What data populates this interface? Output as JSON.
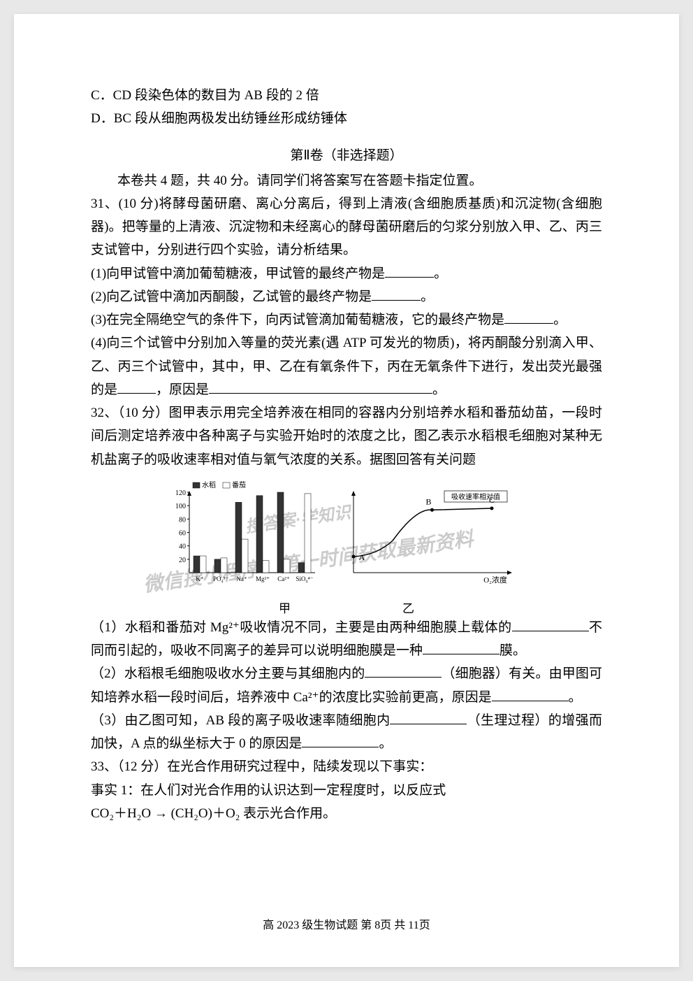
{
  "options": {
    "c": "C．CD 段染色体的数目为 AB 段的 2 倍",
    "d": "D．BC 段从细胞两极发出纺锤丝形成纺锤体"
  },
  "section2": {
    "title": "第Ⅱ卷（非选择题）",
    "intro": "本卷共 4 题，共 40 分。请同学们将答案写在答题卡指定位置。"
  },
  "q31": {
    "stem": "31、(10 分)将酵母菌研磨、离心分离后，得到上清液(含细胞质基质)和沉淀物(含细胞器)。把等量的上清液、沉淀物和未经离心的酵母菌研磨后的匀浆分别放入甲、乙、丙三支试管中，分别进行四个实验，请分析结果。",
    "p1a": "(1)向甲试管中滴加葡萄糖液，甲试管的最终产物是",
    "p1b": "。",
    "p2a": "(2)向乙试管中滴加丙酮酸，乙试管的最终产物是",
    "p2b": "。",
    "p3a": "(3)在完全隔绝空气的条件下，向丙试管滴加葡萄糖液，它的最终产物是",
    "p3b": "。",
    "p4a": "(4)向三个试管中分别加入等量的荧光素(遇 ATP 可发光的物质)，将丙酮酸分别滴入甲、乙、丙三个试管中，其中，甲、乙在有氧条件下，丙在无氧条件下进行，发出荧光最强的是",
    "p4b": "，原因是",
    "p4c": "。"
  },
  "q32": {
    "stem": "32、（10 分）图甲表示用完全培养液在相同的容器内分别培养水稻和番茄幼苗，一段时间后测定培养液中各种离子与实验开始时的浓度之比，图乙表示水稻根毛细胞对某种无机盐离子的吸收速率相对值与氧气浓度的关系。据图回答有关问题",
    "p1a": "（1）水稻和番茄对 Mg²⁺吸收情况不同，主要是由两种细胞膜上载体的",
    "p1b": "不同而引起的，吸收不同离子的差异可以说明细胞膜是一种",
    "p1c": "膜。",
    "p2a": "（2）水稻根毛细胞吸收水分主要与其细胞内的",
    "p2b": "（细胞器）有关。由甲图可知培养水稻一段时间后，培养液中 Ca²⁺的浓度比实验前更高，原因是",
    "p2c": "。",
    "p3a": "（3）由乙图可知，AB 段的离子吸收速率随细胞内",
    "p3b": "（生理过程）的增强而加快，A 点的纵坐标大于 0 的原因是",
    "p3c": "。"
  },
  "q33": {
    "stem": "33、（12 分）在光合作用研究过程中，陆续发现以下事实：",
    "fact1": "事实 1：在人们对光合作用的认识达到一定程度时，以反应式",
    "equation": "CO₂＋H₂O → (CH₂O)＋O₂ 表示光合作用。"
  },
  "footer": "高 2023 级生物试题  第 8页  共 11页",
  "charts": {
    "bar": {
      "legend": [
        "水稻",
        "番茄"
      ],
      "legend_colors": [
        "#333333",
        "#ffffff"
      ],
      "ymax": 120,
      "ytick": 20,
      "yticks": [
        20,
        40,
        60,
        80,
        100,
        120
      ],
      "categories": [
        "K⁺",
        "PO₄³⁻",
        "Na⁺",
        "Mg²⁺",
        "Ca²⁺",
        "SiO₄⁴⁻"
      ],
      "rice_values": [
        25,
        20,
        105,
        115,
        120,
        15
      ],
      "tomato_values": [
        25,
        22,
        50,
        18,
        20,
        118
      ],
      "label": "甲"
    },
    "curve": {
      "title": "吸收速率相对值",
      "xlabel": "O₂浓度",
      "points": [
        "A",
        "B",
        "C"
      ],
      "label": "乙",
      "line_color": "#000"
    }
  },
  "watermark1": "微信搜小程序",
  "watermark2": "第一时间获取最新资料",
  "watermark3": "搜答案·学知识"
}
